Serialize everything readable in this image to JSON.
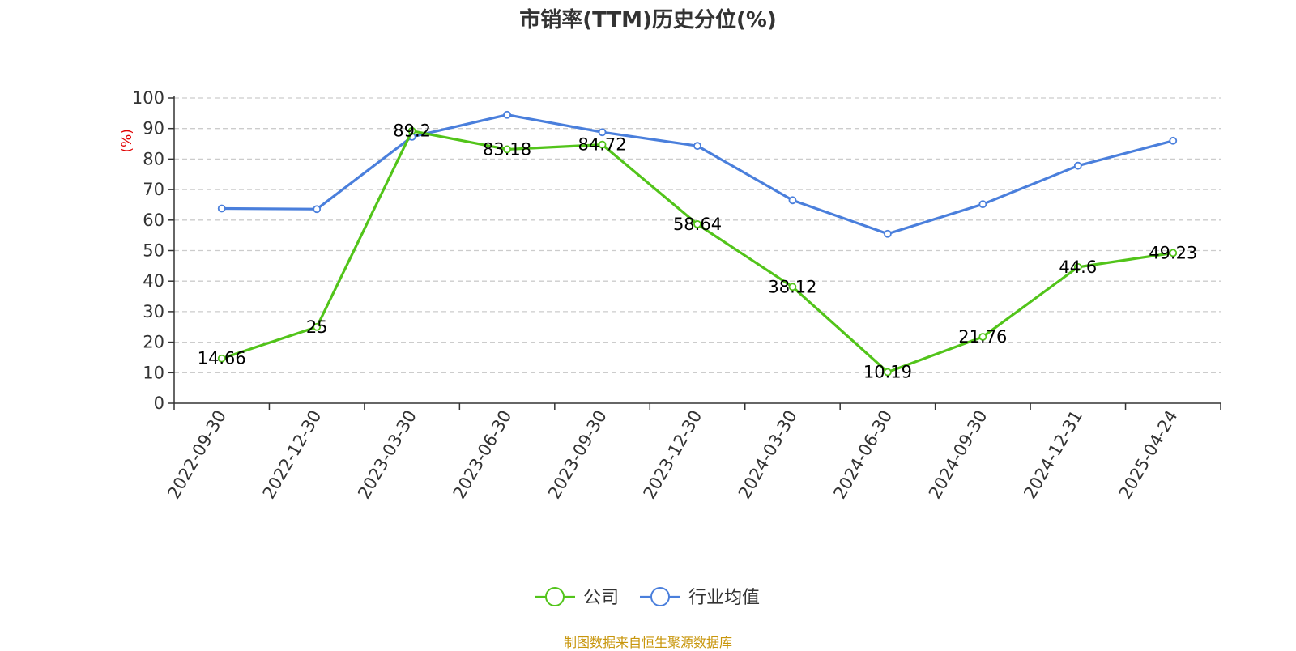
{
  "chart_data": {
    "type": "line",
    "title": "市销率(TTM)历史分位(%)",
    "ylabel": "(%)",
    "xlabel": "",
    "categories": [
      "2022-09-30",
      "2022-12-30",
      "2023-03-30",
      "2023-06-30",
      "2023-09-30",
      "2023-12-30",
      "2024-03-30",
      "2024-06-30",
      "2024-09-30",
      "2024-12-31",
      "2025-04-24"
    ],
    "ylim": [
      0,
      100
    ],
    "yticks": [
      "0",
      "10",
      "20",
      "30",
      "40",
      "50",
      "60",
      "70",
      "80",
      "90",
      "100"
    ],
    "grid": true,
    "legend_position": "bottom-center",
    "series": [
      {
        "name": "公司",
        "color": "#52c41a",
        "values": [
          14.66,
          25,
          89.2,
          83.18,
          84.72,
          58.64,
          38.12,
          10.19,
          21.76,
          44.6,
          49.23
        ],
        "labels": [
          "14.66",
          "25",
          "89.2",
          "83.18",
          "84.72",
          "58.64",
          "38.12",
          "10.19",
          "21.76",
          "44.6",
          "49.23"
        ]
      },
      {
        "name": "行业均值",
        "color": "#4a7fdc",
        "values": [
          63.8,
          63.6,
          87.3,
          94.5,
          88.8,
          84.3,
          66.5,
          55.5,
          65.2,
          77.8,
          86.0
        ]
      }
    ]
  },
  "source": {
    "text": "制图数据来自恒生聚源数据库",
    "color": "#c8960c"
  },
  "colors": {
    "axis": "#333333",
    "grid": "#cccccc",
    "ylabel": "#e00000"
  }
}
